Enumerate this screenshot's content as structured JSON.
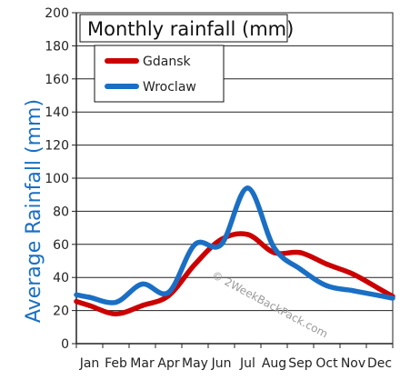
{
  "chart_data": {
    "type": "line",
    "title": "Monthly rainfall (mm)",
    "xlabel": "",
    "ylabel": "Average Rainfall (mm)",
    "categories": [
      "Jan",
      "Feb",
      "Mar",
      "Apr",
      "May",
      "Jun",
      "Jul",
      "Aug",
      "Sep",
      "Oct",
      "Nov",
      "Dec"
    ],
    "series": [
      {
        "name": "Gdansk",
        "color": "#cc0000",
        "values": [
          23,
          18,
          23,
          29,
          48,
          63,
          66,
          55,
          55,
          48,
          42,
          33
        ]
      },
      {
        "name": "Wroclaw",
        "color": "#1a6fc4",
        "values": [
          28,
          25,
          36,
          31,
          60,
          60,
          94,
          58,
          45,
          35,
          32,
          29
        ]
      }
    ],
    "ylim": [
      0,
      200
    ],
    "yticks": [
      0,
      20,
      40,
      60,
      80,
      100,
      120,
      140,
      160,
      180,
      200
    ],
    "grid": true,
    "legend_position": "top-left",
    "ylabel_color": "#1a6fc4",
    "watermark": "© 2WeekBackPack.com"
  }
}
